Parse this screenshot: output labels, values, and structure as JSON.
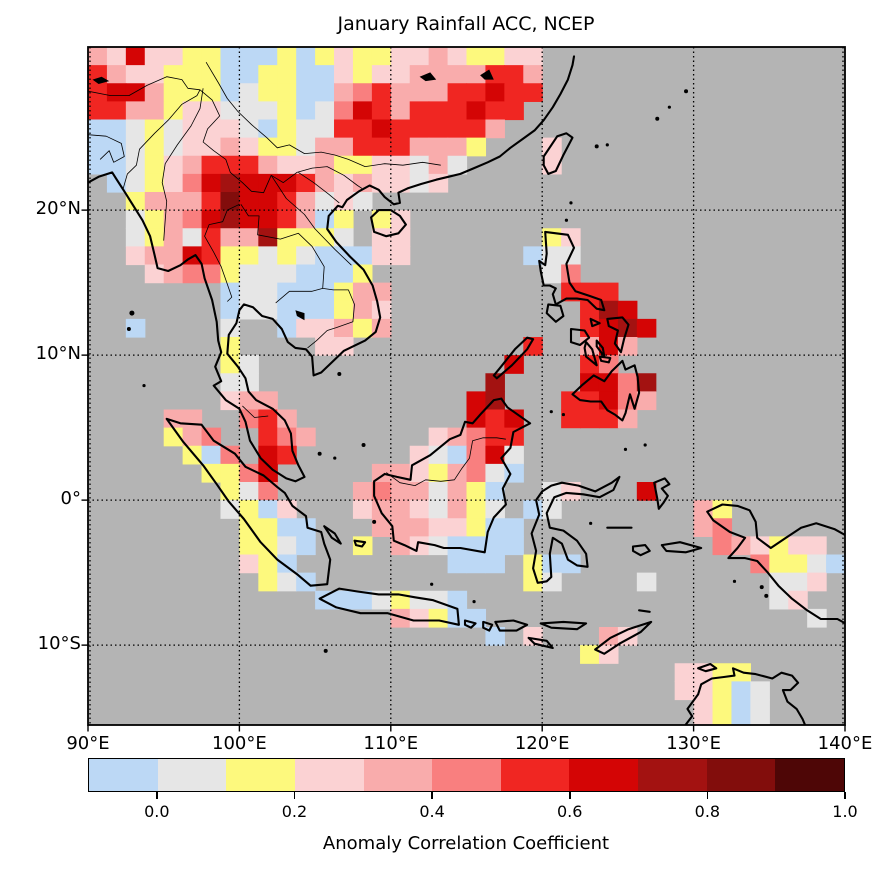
{
  "figure": {
    "title": "January Rainfall ACC, NCEP"
  },
  "chart_data": {
    "type": "heatmap",
    "title": "January Rainfall ACC, NCEP",
    "subtitle": "",
    "region": "Southeast Asia map, gridded anomaly correlation, ocean masked gray",
    "lon_range": [
      90,
      140
    ],
    "lat_top": 31.25,
    "lat_bottom": -15.5,
    "cell_size_deg": 1.25,
    "grid_on": true,
    "xticks": [
      {
        "label": "90°E",
        "lon": 90
      },
      {
        "label": "100°E",
        "lon": 100
      },
      {
        "label": "110°E",
        "lon": 110
      },
      {
        "label": "120°E",
        "lon": 120
      },
      {
        "label": "130°E",
        "lon": 130
      },
      {
        "label": "140°E",
        "lon": 140
      }
    ],
    "yticks": [
      {
        "label": "20°N",
        "lat": 20
      },
      {
        "label": "10°N",
        "lat": 10
      },
      {
        "label": "0°",
        "lat": 0
      },
      {
        "label": "10°S",
        "lat": -10
      }
    ],
    "gridline_lons": [
      90,
      100,
      110,
      120,
      130,
      140
    ],
    "gridline_lats": [
      20,
      10,
      0,
      -10
    ],
    "ocean_color": "#b4b4b4",
    "coastline_color": "#000000",
    "palette": {
      "B": "#bcd8f5",
      "G": "#e6e6e6",
      "Y": "#fdf97d",
      "P1": "#fbd2d3",
      "P2": "#f9acac",
      "P3": "#f97f7f",
      "R1": "#f02622",
      "R2": "#d40505",
      "R3": "#a31211",
      "R4": "#820d0c",
      "R5": "#4e0606"
    },
    "palette_value_ranges": {
      "B": [
        -0.1,
        0.0
      ],
      "G": [
        0.0,
        0.1
      ],
      "Y": [
        0.1,
        0.2
      ],
      "P1": [
        0.2,
        0.3
      ],
      "P2": [
        0.3,
        0.4
      ],
      "P3": [
        0.4,
        0.5
      ],
      "R1": [
        0.5,
        0.6
      ],
      "R2": [
        0.6,
        0.7
      ],
      "R3": [
        0.7,
        0.8
      ],
      "R4": [
        0.8,
        0.9
      ],
      "R5": [
        0.9,
        1.0
      ]
    },
    "grid_rows": [
      "P2 P1 R2 P1 P1 Y Y B B B Y B Y P1 Y Y P1 P1 P2 P1 Y Y P1 P1 . . . . . . . . . . . . . . . .",
      "R1 P2 P1 P1 Y Y Y B B Y Y B B P1 Y P1 P1 P2 P2 P2 P2 R1 R1 P2 . . . . . . . . . . . . . . . .",
      "R1 R2 R2 P2 Y Y Y B G Y Y B B P2 P3 R1 P2 P2 P2 R1 R1 R2 R1 R1 . . . . . . . . . . . . . . . .",
      "R1 R1 P2 P2 Y P1 P1 G G G Y B G P3 R2 R1 P2 R1 R1 R1 R2 R1 R1 . . . . . . . . . . . . . . . . .",
      "B B G Y G P1 P1 P1 G B Y G G R1 R1 R2 R1 R1 R1 R1 R1 P2 . . . . . . . . . . . . . . . . . .",
      "B B G Y G P1 P1 P2 P1 Y Y G P2 P2 R1 R1 R1 P2 P2 P2 Y . . . P1 . . . . . . . . . . . . . . .",
      "B B G Y P1 P2 R1 R1 R1 P2 P1 P1 P2 Y Y P1 P1 G P2 G . . . . P1 . . . . . . . . . . . . . . .",
      ". B G Y P1 P3 R2 R3 R2 R2 R2 R1 P2 P1 P2 P1 P1 G P1 . . . . . . . . . . . . . . . . . . . . .",
      ". . Y P2 P2 P2 R1 R4 R2 R2 R1 P2 G P1 G . . . . . . . . . . . . . . . . . . . . . . . . .",
      ". . G Y P2 P3 R2 R3 R2 R2 R1 P2 B Y . Y P1 . . . . . . . . . . . . . . . . . . . . . . .",
      ". . G Y P2 G R1 P2 P2 R3 Y Y Y G . P1 P1 . . . . . . . Y P1 . . . . . . . . . . . . . . .",
      ". . P1 P2 P2 R2 R1 Y Y G Y G B B B P1 P1 . . . . . . B G G . . . . . . . . . . . . . . .",
      ". . . P1 P2 P3 P3 Y G G G B B B Y . . . . . . . . . G P3 . . . . . . . . . . . . . . .",
      ". . . . . . . B G G B B B Y P2 P2 . . . . . . . . . R1 R1 R1 . . . . . . . . . . . . .",
      ". . . . . . . B G G B B B Y P2 P1 . . . . . . . . . . R1 R3 R2 . . . . . . . . . . . .",
      ". . B . . . . G . . B P1 P1 P2 Y P2 . . . . . . . . . . R1 R2 R3 R2 . . . . . . . . . .",
      ". . . . . . . Y . . . . P1 P1 . . . . . . . . . R1 . . P2 R2 P2 . . . . . . . . . . .",
      ". . . . . . . Y G . . . . . . . . . . . . . R2 . . . R1 P3 . . . . . . . . . . . .",
      ". . . . . . . G G . . . . . . . . . . . . R3 . . . . R2 R2 P3 R3 . . . . . . . . . .",
      ". . . . . . . P1 P2 P2 . . . . . . . . . . R2 R3 . . . R1 R1 R2 P3 P2 . . . . . . . . . .",
      ". . . . P2 P2 . . P3 R1 P2 . . . . . . . . . R2 R1 R2 . . R1 R1 R1 P2 . . . . . . . . . . .",
      ". . . . Y P2 P3 . . R1 P3 P2 . . . . . . P1 P2 P3 R1 R1 . . . . . . . . . . . . . . . . .",
      ". . . . . Y B P3 . R2 R1 . . . . . . P1 G B P3 R2 G . . . . . . . . . . . . . . . . .",
      ". . . . . . Y Y P3 R2 . . . . . P2 P2 P1 Y P2 P3 G B . . . . . . . . . . . . . . . . .",
      ". . . . . . . Y G P3 . . . . P2 P3 P2 P2 G P2 Y B . . G P1 . . . R2 . . . . . . . . . .",
      ". . . . . . . G Y B P1 . . . P1 P2 P2 P1 G P2 Y G . B G . . . . . . . P2 Y . . . . . .",
      ". . . . . . . . Y Y B B . . . P2 P2 P2 P1 P1 Y B B . . . . . . . . . P2 P3 . . . . . .",
      ". . . . . . . . Y Y G B . . Y . P2 P1 G B B B B . . . . . . . . . . P3 P2 P1 Y P1 P1 .",
      ". . . . . . . . P1 Y B . . . . . . . . B B B . Y B B . . . . . . . . . P3 Y Y G B .",
      ". . . . . . . . . Y G B . . . . . . . . . . . Y G . . . . G . . . . . . G G P1 .",
      ". . . . . . . . . . . . B B B G Y G G B . . . . . . . . . . . . . . . . G P1 . .",
      ". . . . . . . . . . . . . . . . P2 P1 Y B B . . . . . . . . . . . . . . . . . G .",
      ". . . . . . . . . . . . . . . . . . . . . B . P1 . . . P2 P1 . . . . . . . . . . .",
      ". . . . . . . . . . . . . . . . . . . . . . . . . . Y P1 . . . . . . . . . . . .",
      ". . . . . . . . . . . . . . . . . . . . . . . . . . . . . . . P1 P1 Y Y . . . . .",
      ". . . . . . . . . . . . . . . . . . . . . . . . . . . . . . . P1 P1 Y B G . . . .",
      ". . . . . . . . . . . . . . . . . . . . . . . . . . . . . . . . P1 Y B G . . . ."
    ],
    "colorbar": {
      "label": "Anomaly Correlation Coefficient",
      "orientation": "horizontal",
      "boundaries": [
        -0.1,
        0.0,
        0.1,
        0.2,
        0.3,
        0.4,
        0.5,
        0.6,
        0.7,
        0.8,
        0.9,
        1.0
      ],
      "segment_colors": [
        "#bcd8f5",
        "#e6e6e6",
        "#fdf97d",
        "#fbd2d3",
        "#f9acac",
        "#f97f7f",
        "#f02622",
        "#d40505",
        "#a31211",
        "#820d0c",
        "#4e0606"
      ],
      "tick_labels": [
        {
          "label": "0.0",
          "value": 0.0
        },
        {
          "label": "0.2",
          "value": 0.2
        },
        {
          "label": "0.4",
          "value": 0.4
        },
        {
          "label": "0.6",
          "value": 0.6
        },
        {
          "label": "0.8",
          "value": 0.8
        },
        {
          "label": "1.0",
          "value": 1.0
        }
      ]
    }
  }
}
